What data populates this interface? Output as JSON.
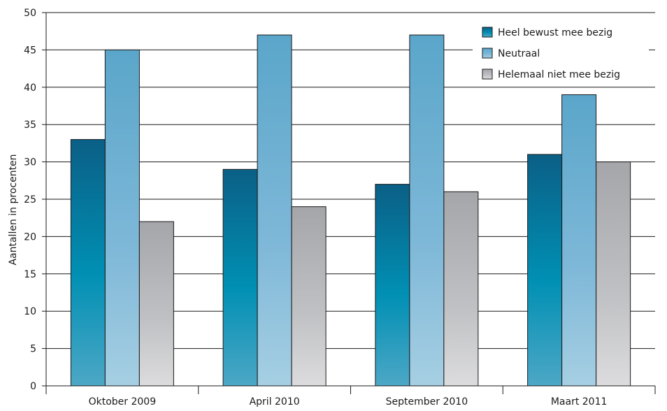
{
  "chart_data": {
    "type": "bar",
    "title": "",
    "xlabel": "",
    "ylabel": "Aantallen in procenten",
    "ylim": [
      0,
      50
    ],
    "yticks": [
      0,
      5,
      10,
      15,
      20,
      25,
      30,
      35,
      40,
      45,
      50
    ],
    "grid": true,
    "legend_position": "top-right",
    "categories": [
      "Oktober 2009",
      "April 2010",
      "September 2010",
      "Maart 2011"
    ],
    "series": [
      {
        "name": "Heel bewust mee bezig",
        "values": [
          33,
          29,
          27,
          31
        ],
        "color": "#0a7ea8"
      },
      {
        "name": "Neutraal",
        "values": [
          45,
          47,
          47,
          39
        ],
        "color": "#7fb9d8"
      },
      {
        "name": "Helemaal niet mee bezig",
        "values": [
          22,
          24,
          26,
          30
        ],
        "color": "#b6b7ba"
      }
    ]
  }
}
